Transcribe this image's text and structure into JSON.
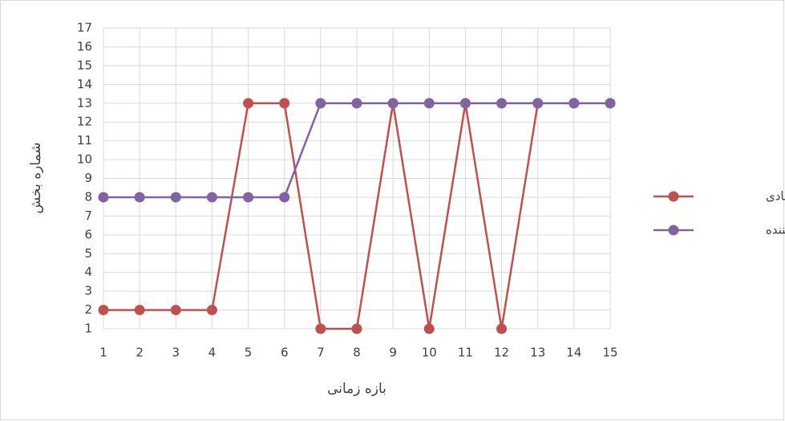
{
  "chart_data": {
    "type": "line",
    "x_label": "بازه زمانی",
    "y_label": "شماره بخش",
    "x": [
      1,
      2,
      3,
      4,
      5,
      6,
      7,
      8,
      9,
      10,
      11,
      12,
      13,
      14,
      15
    ],
    "xlim": [
      1,
      15
    ],
    "xticks": [
      1,
      2,
      3,
      4,
      5,
      6,
      7,
      8,
      9,
      10,
      11,
      12,
      13,
      14,
      15
    ],
    "ylim": [
      1,
      17
    ],
    "yticks": [
      1,
      2,
      3,
      4,
      5,
      6,
      7,
      8,
      9,
      10,
      11,
      12,
      13,
      14,
      15,
      16,
      17
    ],
    "grid": true,
    "legend": "right",
    "series": [
      {
        "name": "پویای عادی",
        "color": "#c0504d",
        "values": [
          2,
          2,
          2,
          2,
          13,
          13,
          1,
          1,
          13,
          1,
          13,
          1,
          13,
          13,
          13
        ]
      },
      {
        "name": "تثبیت کننده",
        "color": "#8064a2",
        "values": [
          8,
          8,
          8,
          8,
          8,
          8,
          13,
          13,
          13,
          13,
          13,
          13,
          13,
          13,
          13
        ]
      }
    ]
  }
}
